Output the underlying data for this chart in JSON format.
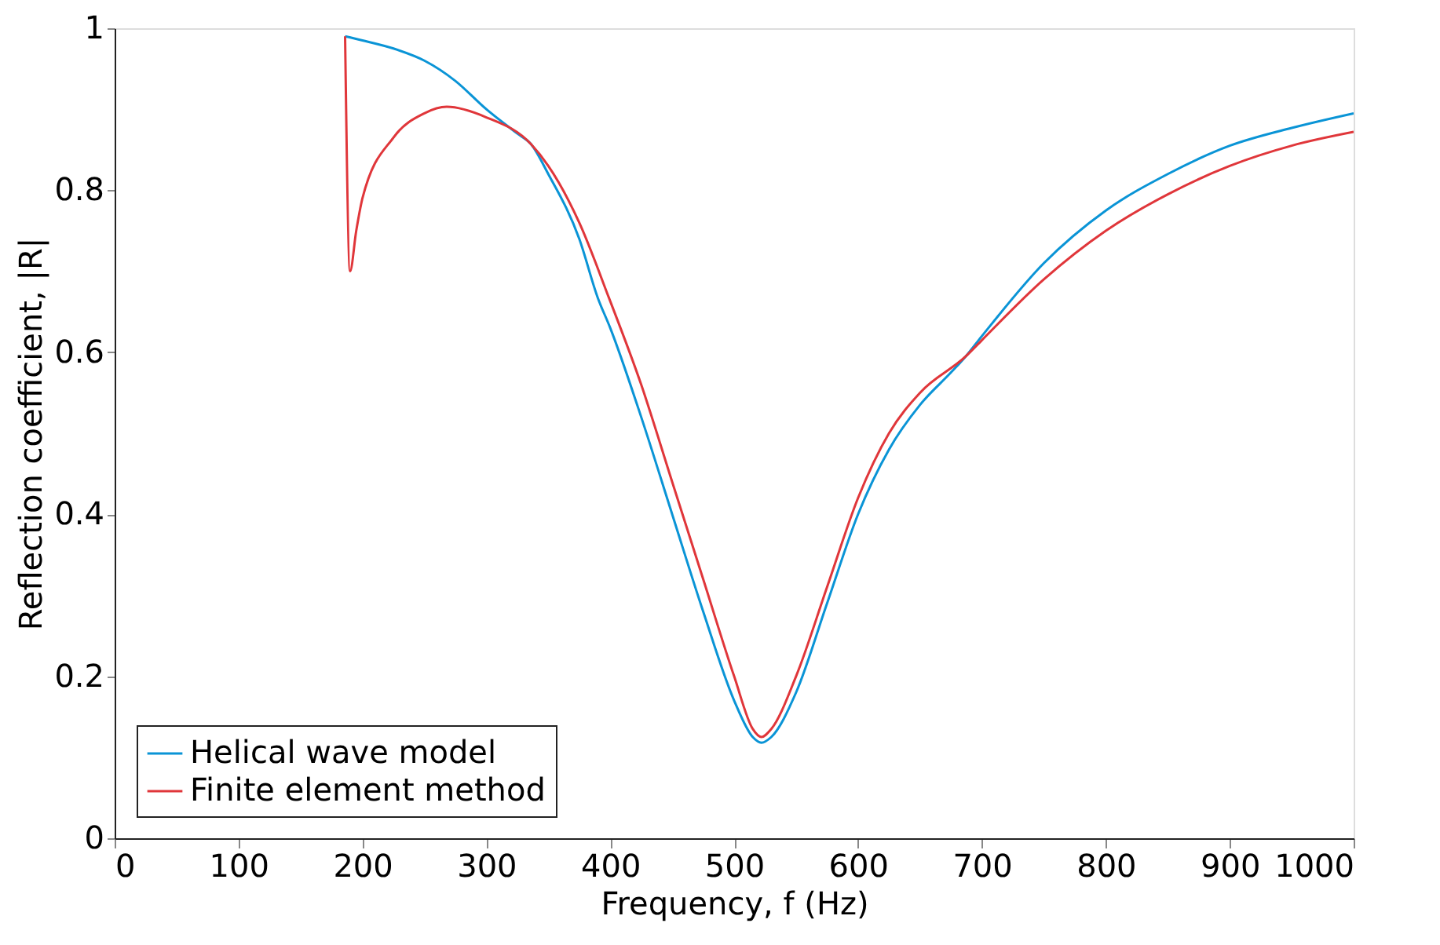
{
  "chart_data": {
    "type": "line",
    "xlabel": "Frequency, f (Hz)",
    "ylabel": "Reflection coefficient, |R|",
    "xlim": [
      0,
      1000
    ],
    "xticks": [
      0,
      100,
      200,
      300,
      400,
      500,
      600,
      700,
      800,
      900,
      1000
    ],
    "ylim": [
      0,
      1
    ],
    "yticks": [
      0,
      0.2,
      0.4,
      0.6,
      0.8,
      1
    ],
    "grid": false,
    "legend": "bottom left",
    "marker": "none",
    "line_style": "solid",
    "series": [
      {
        "name": "Helical wave model",
        "color": "#0a94d6",
        "x": [
          186,
          200,
          225,
          250,
          275,
          300,
          325,
          336,
          350,
          375,
          390,
          400,
          425,
          450,
          475,
          500,
          515,
          522,
          530,
          550,
          575,
          600,
          625,
          650,
          675,
          687,
          700,
          750,
          800,
          850,
          900,
          950,
          1000
        ],
        "values": [
          0.99,
          0.985,
          0.975,
          0.96,
          0.935,
          0.9,
          0.87,
          0.857,
          0.82,
          0.74,
          0.667,
          0.63,
          0.52,
          0.4,
          0.28,
          0.17,
          0.125,
          0.118,
          0.125,
          0.18,
          0.29,
          0.4,
          0.48,
          0.535,
          0.575,
          0.595,
          0.62,
          0.71,
          0.775,
          0.82,
          0.855,
          0.877,
          0.895
        ]
      },
      {
        "name": "Finite element method",
        "color": "#e0363a",
        "x": [
          186,
          190,
          195,
          200,
          225,
          250,
          268,
          300,
          336,
          350,
          375,
          399,
          425,
          450,
          475,
          500,
          515,
          522,
          530,
          550,
          575,
          600,
          625,
          650,
          687,
          700,
          750,
          800,
          850,
          900,
          950,
          1000
        ],
        "values": [
          0.99,
          0.7,
          0.75,
          0.79,
          0.865,
          0.895,
          0.903,
          0.89,
          0.857,
          0.83,
          0.76,
          0.667,
          0.56,
          0.44,
          0.32,
          0.2,
          0.135,
          0.125,
          0.135,
          0.2,
          0.31,
          0.42,
          0.5,
          0.55,
          0.595,
          0.615,
          0.69,
          0.75,
          0.795,
          0.83,
          0.855,
          0.872
        ]
      }
    ]
  }
}
